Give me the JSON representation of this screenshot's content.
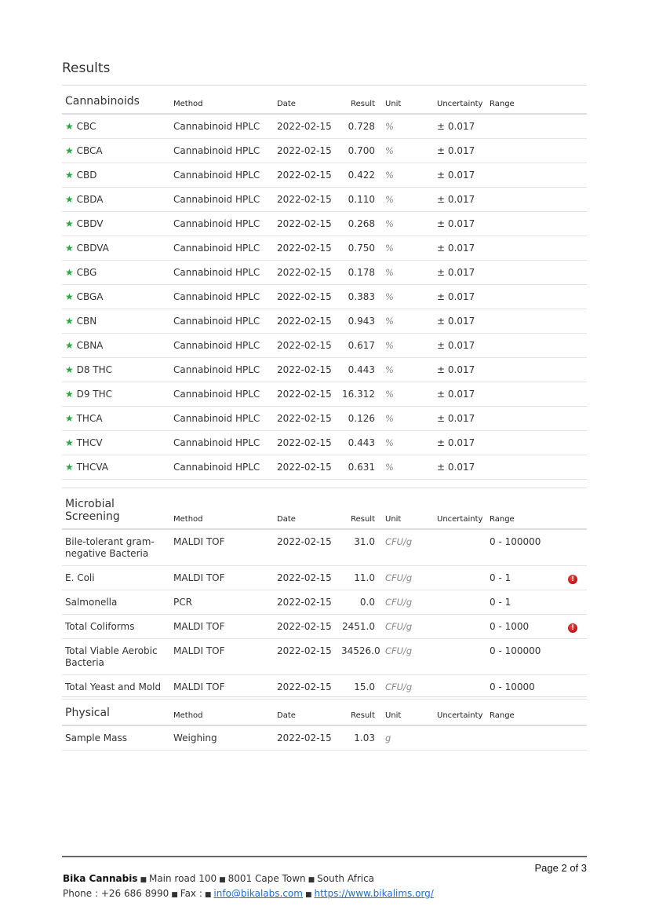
{
  "title": "Results",
  "columns": {
    "method": "Method",
    "date": "Date",
    "result": "Result",
    "unit": "Unit",
    "uncertainty": "Uncertainty",
    "range": "Range"
  },
  "sections": [
    {
      "name": "Cannabinoids",
      "rows": [
        {
          "analyte": "CBC",
          "star": true,
          "method": "Cannabinoid HPLC",
          "date": "2022-02-15",
          "result": "0.728",
          "unit": "%",
          "uncertainty": "± 0.017",
          "range": "",
          "flag": false
        },
        {
          "analyte": "CBCA",
          "star": true,
          "method": "Cannabinoid HPLC",
          "date": "2022-02-15",
          "result": "0.700",
          "unit": "%",
          "uncertainty": "± 0.017",
          "range": "",
          "flag": false
        },
        {
          "analyte": "CBD",
          "star": true,
          "method": "Cannabinoid HPLC",
          "date": "2022-02-15",
          "result": "0.422",
          "unit": "%",
          "uncertainty": "± 0.017",
          "range": "",
          "flag": false
        },
        {
          "analyte": "CBDA",
          "star": true,
          "method": "Cannabinoid HPLC",
          "date": "2022-02-15",
          "result": "0.110",
          "unit": "%",
          "uncertainty": "± 0.017",
          "range": "",
          "flag": false
        },
        {
          "analyte": "CBDV",
          "star": true,
          "method": "Cannabinoid HPLC",
          "date": "2022-02-15",
          "result": "0.268",
          "unit": "%",
          "uncertainty": "± 0.017",
          "range": "",
          "flag": false
        },
        {
          "analyte": "CBDVA",
          "star": true,
          "method": "Cannabinoid HPLC",
          "date": "2022-02-15",
          "result": "0.750",
          "unit": "%",
          "uncertainty": "± 0.017",
          "range": "",
          "flag": false
        },
        {
          "analyte": "CBG",
          "star": true,
          "method": "Cannabinoid HPLC",
          "date": "2022-02-15",
          "result": "0.178",
          "unit": "%",
          "uncertainty": "± 0.017",
          "range": "",
          "flag": false
        },
        {
          "analyte": "CBGA",
          "star": true,
          "method": "Cannabinoid HPLC",
          "date": "2022-02-15",
          "result": "0.383",
          "unit": "%",
          "uncertainty": "± 0.017",
          "range": "",
          "flag": false
        },
        {
          "analyte": "CBN",
          "star": true,
          "method": "Cannabinoid HPLC",
          "date": "2022-02-15",
          "result": "0.943",
          "unit": "%",
          "uncertainty": "± 0.017",
          "range": "",
          "flag": false
        },
        {
          "analyte": "CBNA",
          "star": true,
          "method": "Cannabinoid HPLC",
          "date": "2022-02-15",
          "result": "0.617",
          "unit": "%",
          "uncertainty": "± 0.017",
          "range": "",
          "flag": false
        },
        {
          "analyte": "D8 THC",
          "star": true,
          "method": "Cannabinoid HPLC",
          "date": "2022-02-15",
          "result": "0.443",
          "unit": "%",
          "uncertainty": "± 0.017",
          "range": "",
          "flag": false
        },
        {
          "analyte": "D9 THC",
          "star": true,
          "method": "Cannabinoid HPLC",
          "date": "2022-02-15",
          "result": "16.312",
          "unit": "%",
          "uncertainty": "± 0.017",
          "range": "",
          "flag": false
        },
        {
          "analyte": "THCA",
          "star": true,
          "method": "Cannabinoid HPLC",
          "date": "2022-02-15",
          "result": "0.126",
          "unit": "%",
          "uncertainty": "± 0.017",
          "range": "",
          "flag": false
        },
        {
          "analyte": "THCV",
          "star": true,
          "method": "Cannabinoid HPLC",
          "date": "2022-02-15",
          "result": "0.443",
          "unit": "%",
          "uncertainty": "± 0.017",
          "range": "",
          "flag": false
        },
        {
          "analyte": "THCVA",
          "star": true,
          "method": "Cannabinoid HPLC",
          "date": "2022-02-15",
          "result": "0.631",
          "unit": "%",
          "uncertainty": "± 0.017",
          "range": "",
          "flag": false
        }
      ]
    },
    {
      "name": "Microbial Screening",
      "rows": [
        {
          "analyte": "Bile-tolerant gram-negative Bacteria",
          "star": false,
          "method": "MALDI TOF",
          "date": "2022-02-15",
          "result": "31.0",
          "unit": "CFU/g",
          "uncertainty": "",
          "range": "0 - 100000",
          "flag": false
        },
        {
          "analyte": "E. Coli",
          "star": false,
          "method": "MALDI TOF",
          "date": "2022-02-15",
          "result": "11.0",
          "unit": "CFU/g",
          "uncertainty": "",
          "range": "0 - 1",
          "flag": true
        },
        {
          "analyte": "Salmonella",
          "star": false,
          "method": "PCR",
          "date": "2022-02-15",
          "result": "0.0",
          "unit": "CFU/g",
          "uncertainty": "",
          "range": "0 - 1",
          "flag": false
        },
        {
          "analyte": "Total Coliforms",
          "star": false,
          "method": "MALDI TOF",
          "date": "2022-02-15",
          "result": "2451.0",
          "unit": "CFU/g",
          "uncertainty": "",
          "range": "0 - 1000",
          "flag": true
        },
        {
          "analyte": "Total Viable Aerobic Bacteria",
          "star": false,
          "method": "MALDI TOF",
          "date": "2022-02-15",
          "result": "34526.0",
          "unit": "CFU/g",
          "uncertainty": "",
          "range": "0 - 100000",
          "flag": false
        },
        {
          "analyte": "Total Yeast and Mold",
          "star": false,
          "method": "MALDI TOF",
          "date": "2022-02-15",
          "result": "15.0",
          "unit": "CFU/g",
          "uncertainty": "",
          "range": "0 - 10000",
          "flag": false
        }
      ]
    },
    {
      "name": "Physical",
      "rows": [
        {
          "analyte": "Sample Mass",
          "star": false,
          "method": "Weighing",
          "date": "2022-02-15",
          "result": "1.03",
          "unit": "g",
          "uncertainty": "",
          "range": "",
          "flag": false
        }
      ]
    }
  ],
  "icons": {
    "star": "star-icon",
    "flag": "exclamation-alert-icon"
  },
  "colors": {
    "star": "#2aa542",
    "flag": "#cc1111",
    "link": "#1a6ee0"
  },
  "footer": {
    "page": "Page 2 of 3",
    "company": "Bika Cannabis",
    "address": [
      "Main road 100",
      "8001 Cape Town",
      "South Africa"
    ],
    "phone": "Phone : +26 686 8990",
    "fax": "Fax :",
    "email": "info@bikalabs.com",
    "website": "https://www.bikalims.org/"
  }
}
